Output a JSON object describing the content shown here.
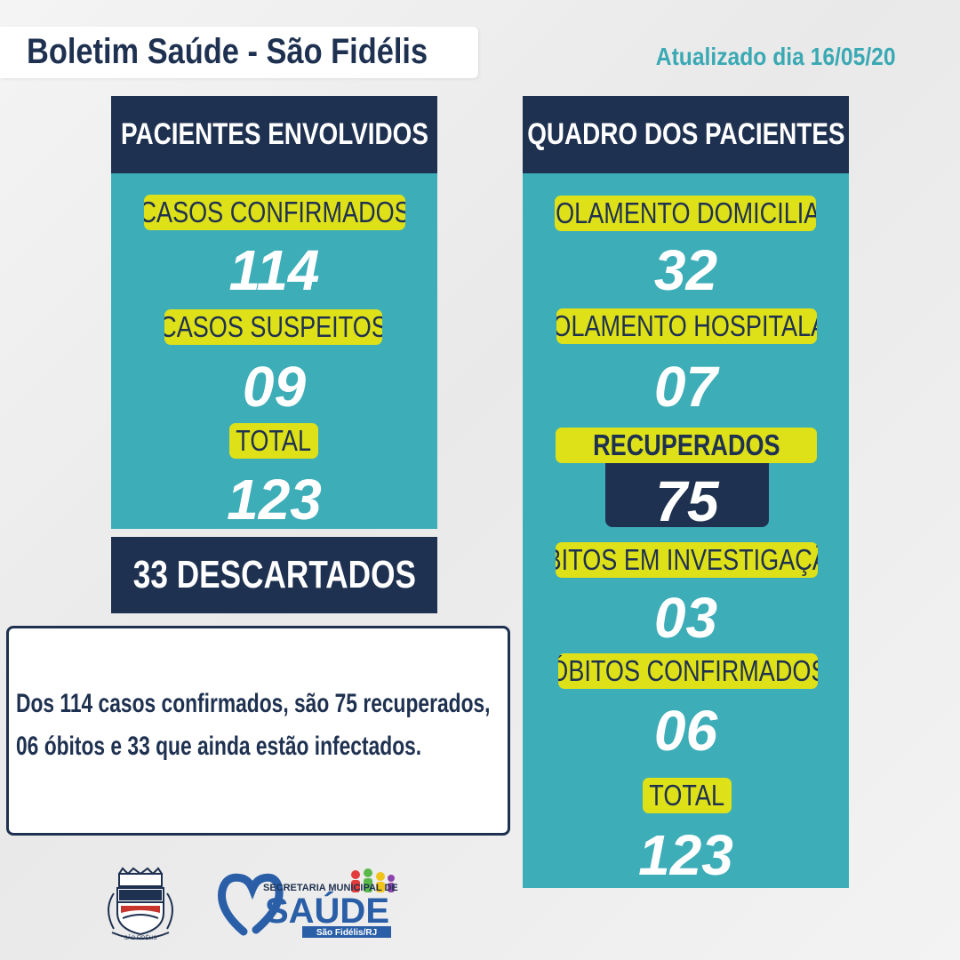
{
  "header": {
    "title": "Boletim Saúde - São Fidélis",
    "updated": "Atualizado dia 16/05/20"
  },
  "left_panel": {
    "heading": "PACIENTES ENVOLVIDOS",
    "confirmed_label": "CASOS CONFIRMADOS",
    "confirmed_value": "114",
    "suspected_label": "CASOS SUSPEITOS",
    "suspected_value": "09",
    "total_label": "TOTAL",
    "total_value": "123",
    "discarded": "33 DESCARTADOS"
  },
  "right_panel": {
    "heading": "QUADRO DOS PACIENTES",
    "home_isolation_label": "ISOLAMENTO DOMICILIAR",
    "home_isolation_value": "32",
    "hospital_isolation_label": "ISOLAMENTO HOSPITALAR",
    "hospital_isolation_value": "07",
    "recovered_label": "RECUPERADOS",
    "recovered_value": "75",
    "deaths_investigation_label": "ÓBITOS EM INVESTIGAÇÃO",
    "deaths_investigation_value": "03",
    "deaths_confirmed_label": "ÓBITOS CONFIRMADOS",
    "deaths_confirmed_value": "06",
    "total_label": "TOTAL",
    "total_value": "123"
  },
  "note": {
    "line1": "Dos 114 casos confirmados, são 75 recuperados,",
    "line2": "06 óbitos e 33 que ainda estão infectados."
  },
  "logos": {
    "city_crest_text": "SÃO FIDÉLIS",
    "saude_top": "SECRETARIA MUNICIPAL DE",
    "saude_main": "SAÚDE",
    "saude_sub": "São Fidélis/RJ"
  },
  "colors": {
    "navy": "#1f3150",
    "teal": "#3dadb8",
    "yellow": "#dee117",
    "accent_text": "#3aa9b4"
  }
}
